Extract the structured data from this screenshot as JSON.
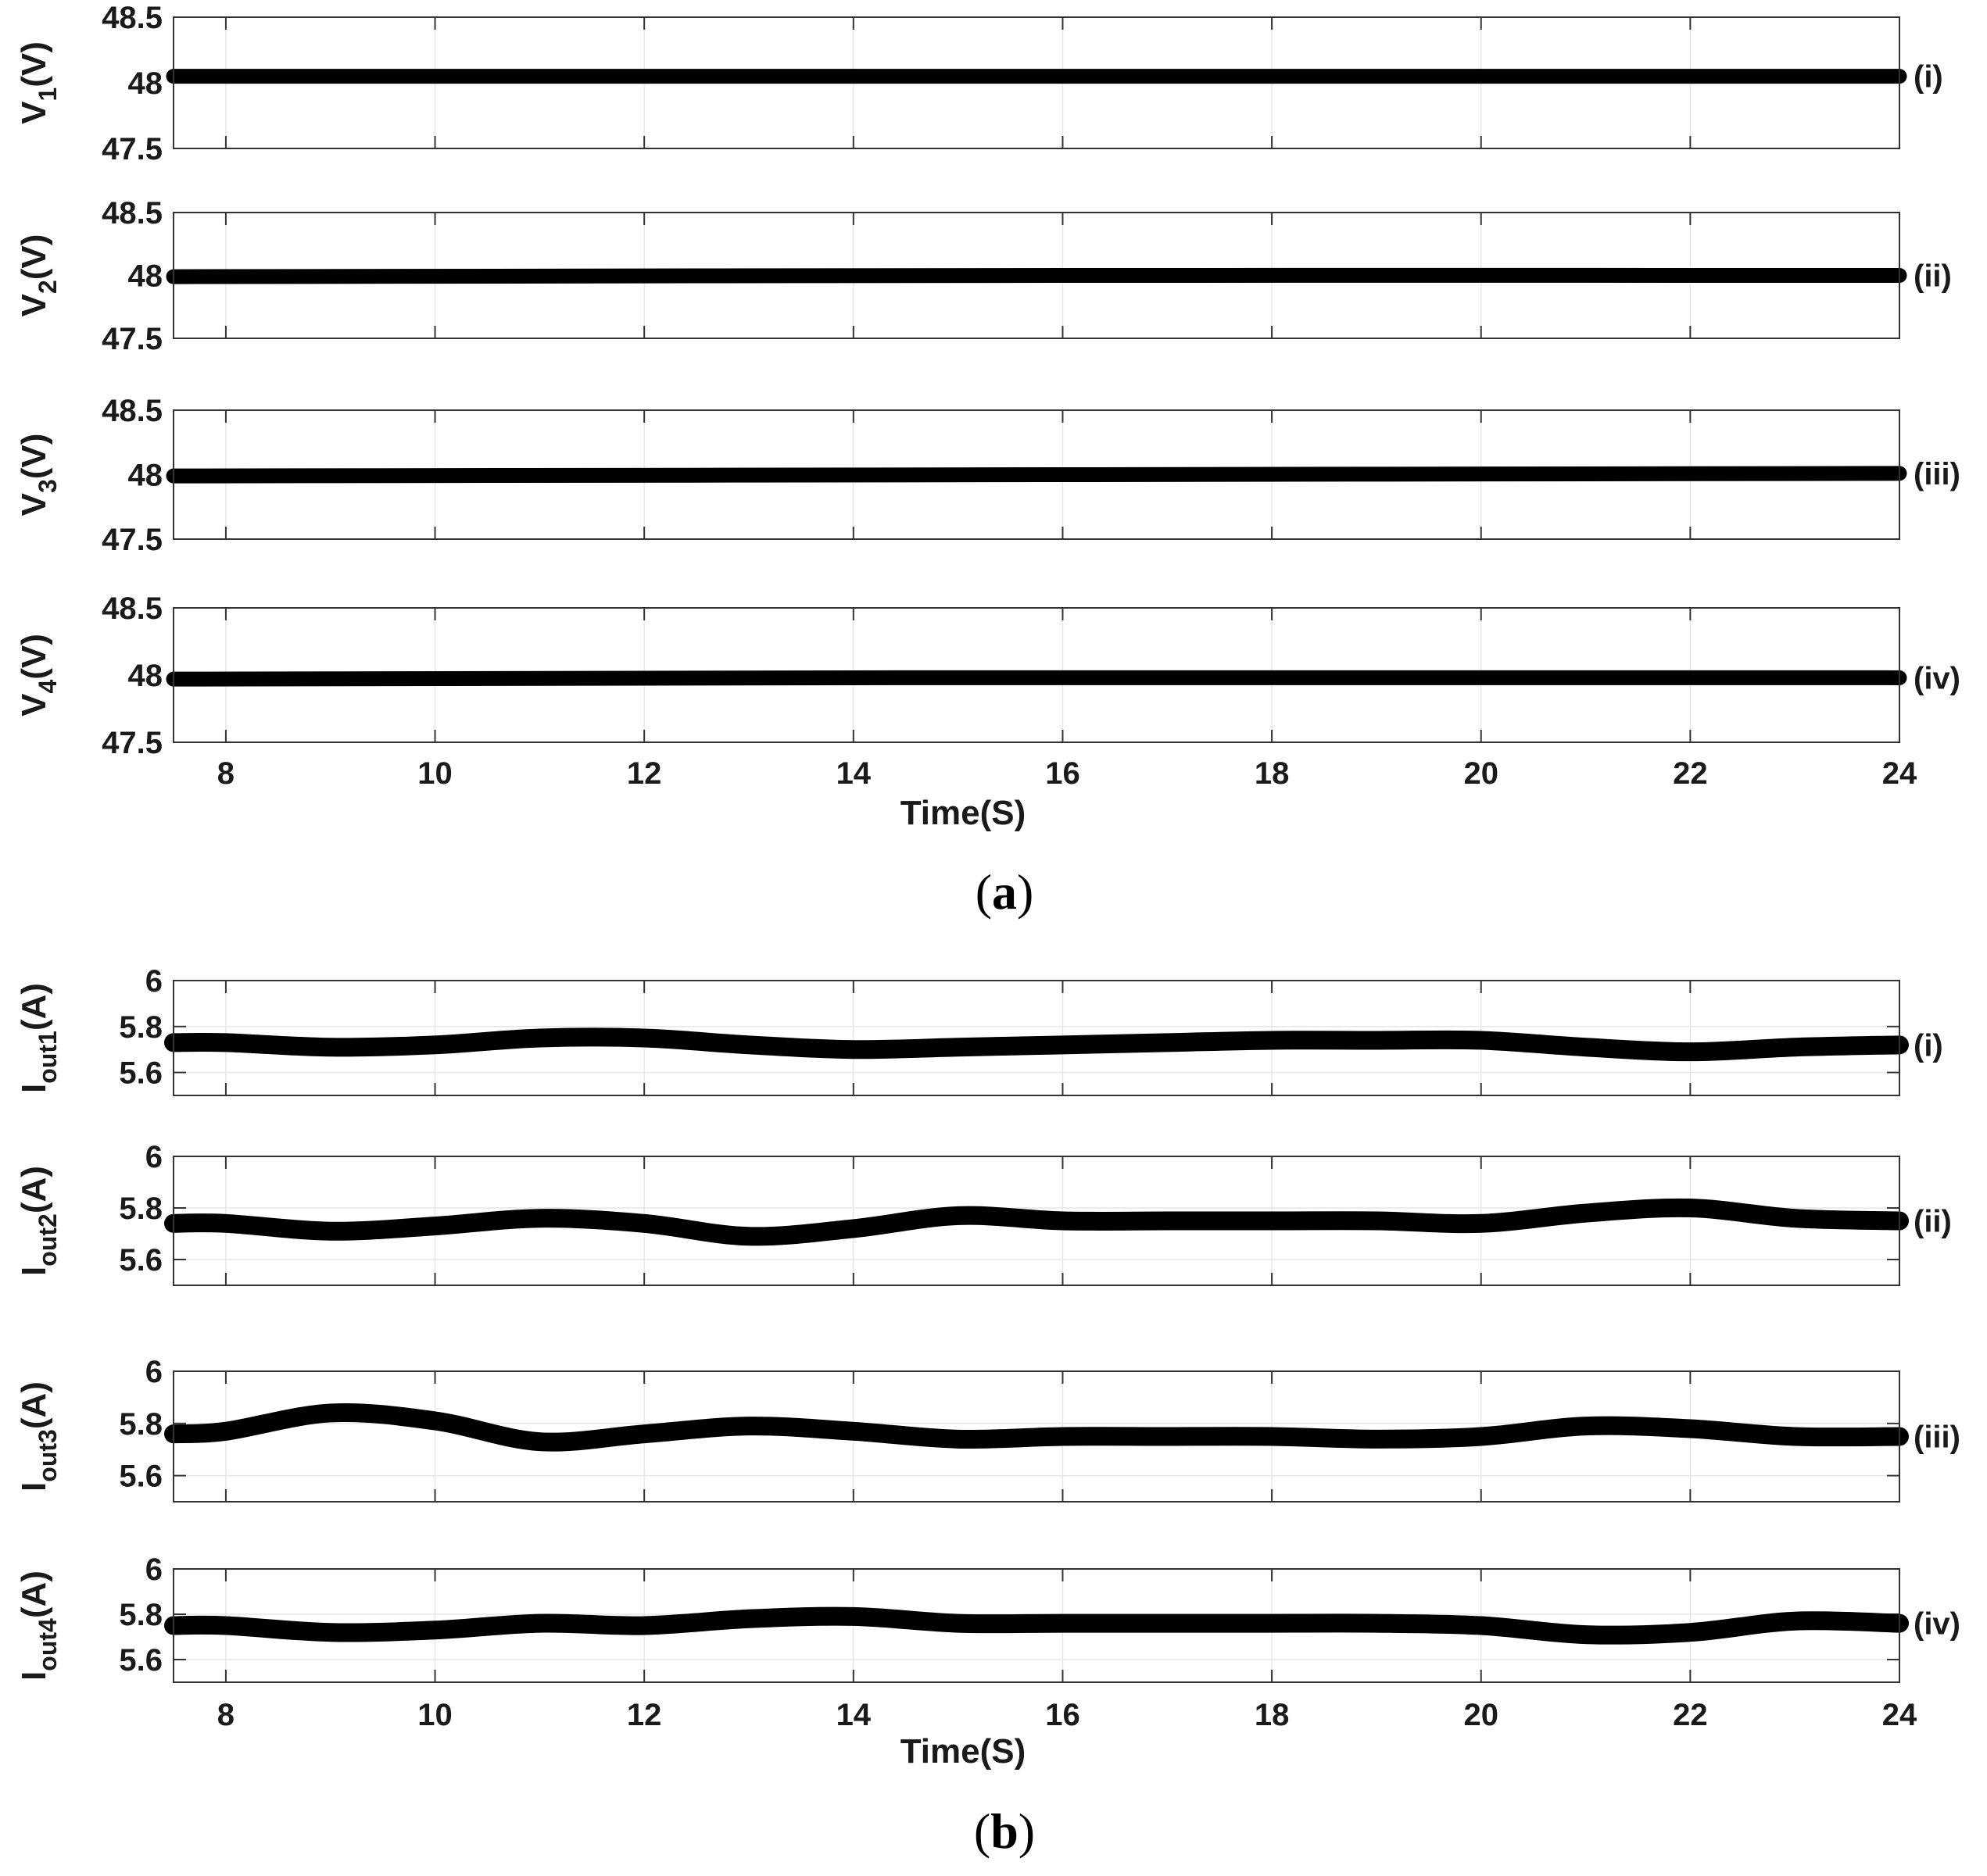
{
  "chart_data": [
    {
      "type": "line",
      "caption": "(a)",
      "xlabel": "Time(S)",
      "xlim": [
        7.5,
        24
      ],
      "xticks": [
        8,
        10,
        12,
        14,
        16,
        18,
        20,
        22,
        24
      ],
      "panels": [
        {
          "ylabel": "V",
          "ylabel_sub": "1",
          "ylabel_unit": "(V)",
          "tag": "(i)",
          "ylim": [
            47.5,
            48.5
          ],
          "yticks": [
            "47.5",
            "48",
            "48.5"
          ],
          "x": [
            7.5,
            24
          ],
          "y": [
            48.05,
            48.05
          ]
        },
        {
          "ylabel": "V",
          "ylabel_sub": "2",
          "ylabel_unit": "(V)",
          "tag": "(ii)",
          "ylim": [
            47.5,
            48.5
          ],
          "yticks": [
            "47.5",
            "48",
            "48.5"
          ],
          "x": [
            7.5,
            16,
            24
          ],
          "y": [
            47.99,
            48.0,
            48.0
          ]
        },
        {
          "ylabel": "V",
          "ylabel_sub": "3",
          "ylabel_unit": "(V)",
          "tag": "(iii)",
          "ylim": [
            47.5,
            48.5
          ],
          "yticks": [
            "47.5",
            "48",
            "48.5"
          ],
          "x": [
            7.5,
            16,
            24
          ],
          "y": [
            47.99,
            48.0,
            48.01
          ]
        },
        {
          "ylabel": "V",
          "ylabel_sub": "4",
          "ylabel_unit": "(V)",
          "tag": "(iv)",
          "ylim": [
            47.5,
            48.5
          ],
          "yticks": [
            "47.5",
            "48",
            "48.5"
          ],
          "x": [
            7.5,
            14,
            24
          ],
          "y": [
            47.97,
            47.98,
            47.98
          ]
        }
      ]
    },
    {
      "type": "line",
      "caption": "(b)",
      "xlabel": "Time(S)",
      "xlim": [
        7.5,
        24
      ],
      "xticks": [
        8,
        10,
        12,
        14,
        16,
        18,
        20,
        22,
        24
      ],
      "panels": [
        {
          "ylabel": "I",
          "ylabel_sub": "out1",
          "ylabel_unit": "(A)",
          "tag": "(i)",
          "ylim": [
            5.5,
            6.0
          ],
          "yticks": [
            "5.6",
            "5.8",
            "6"
          ],
          "x": [
            7.5,
            8,
            9,
            10,
            11,
            12,
            13,
            14,
            15,
            16,
            17,
            18,
            19,
            20,
            21,
            22,
            23,
            24
          ],
          "y": [
            5.73,
            5.73,
            5.71,
            5.72,
            5.75,
            5.75,
            5.72,
            5.7,
            5.71,
            5.72,
            5.73,
            5.74,
            5.74,
            5.74,
            5.71,
            5.69,
            5.71,
            5.72
          ]
        },
        {
          "ylabel": "I",
          "ylabel_sub": "out2",
          "ylabel_unit": "(A)",
          "tag": "(ii)",
          "ylim": [
            5.5,
            6.0
          ],
          "yticks": [
            "5.6",
            "5.8",
            "6"
          ],
          "x": [
            7.5,
            8,
            9,
            10,
            11,
            12,
            13,
            14,
            15,
            16,
            17,
            18,
            19,
            20,
            21,
            22,
            23,
            24
          ],
          "y": [
            5.74,
            5.74,
            5.71,
            5.73,
            5.76,
            5.74,
            5.69,
            5.72,
            5.77,
            5.75,
            5.75,
            5.75,
            5.75,
            5.74,
            5.78,
            5.8,
            5.76,
            5.75
          ]
        },
        {
          "ylabel": "I",
          "ylabel_sub": "out3",
          "ylabel_unit": "(A)",
          "tag": "(iii)",
          "ylim": [
            5.5,
            6.0
          ],
          "yticks": [
            "5.6",
            "5.8",
            "6"
          ],
          "x": [
            7.5,
            8,
            9,
            10,
            11,
            12,
            13,
            14,
            15,
            16,
            17,
            18,
            19,
            20,
            21,
            22,
            23,
            24
          ],
          "y": [
            5.76,
            5.77,
            5.84,
            5.81,
            5.73,
            5.76,
            5.79,
            5.77,
            5.74,
            5.75,
            5.75,
            5.75,
            5.74,
            5.75,
            5.79,
            5.78,
            5.75,
            5.75
          ]
        },
        {
          "ylabel": "I",
          "ylabel_sub": "out4",
          "ylabel_unit": "(A)",
          "tag": "(iv)",
          "ylim": [
            5.5,
            6.0
          ],
          "yticks": [
            "5.6",
            "5.8",
            "6"
          ],
          "x": [
            7.5,
            8,
            9,
            10,
            11,
            12,
            13,
            14,
            15,
            16,
            17,
            18,
            19,
            20,
            21,
            22,
            23,
            24
          ],
          "y": [
            5.75,
            5.75,
            5.72,
            5.73,
            5.76,
            5.75,
            5.78,
            5.79,
            5.76,
            5.76,
            5.76,
            5.76,
            5.76,
            5.75,
            5.71,
            5.72,
            5.77,
            5.76
          ]
        }
      ]
    }
  ]
}
